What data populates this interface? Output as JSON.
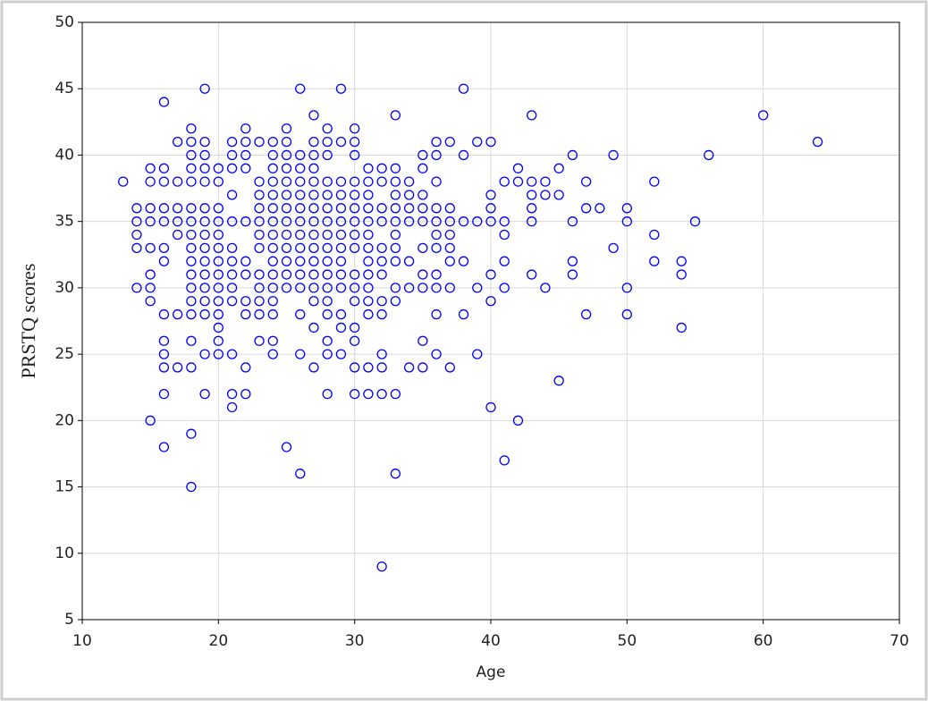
{
  "chart_data": {
    "type": "scatter",
    "xlabel": "Age",
    "ylabel": "PRSTQ  scores",
    "xlim": [
      10,
      70
    ],
    "ylim": [
      5,
      50
    ],
    "xticks": [
      10,
      20,
      30,
      40,
      50,
      60,
      70
    ],
    "yticks": [
      5,
      10,
      15,
      20,
      25,
      30,
      35,
      40,
      45,
      50
    ],
    "grid": true,
    "color": "#0000ff",
    "x": [
      13,
      14,
      14,
      14,
      14,
      14,
      15,
      15,
      15,
      15,
      15,
      15,
      15,
      15,
      15,
      16,
      16,
      16,
      16,
      16,
      16,
      16,
      16,
      16,
      16,
      16,
      16,
      16,
      17,
      17,
      17,
      17,
      17,
      17,
      17,
      18,
      18,
      18,
      18,
      18,
      18,
      18,
      18,
      18,
      18,
      18,
      18,
      18,
      18,
      18,
      18,
      18,
      18,
      19,
      19,
      19,
      19,
      19,
      19,
      19,
      19,
      19,
      19,
      19,
      19,
      19,
      19,
      19,
      19,
      20,
      20,
      20,
      20,
      20,
      20,
      20,
      20,
      20,
      20,
      20,
      20,
      20,
      20,
      21,
      21,
      21,
      21,
      21,
      21,
      21,
      21,
      21,
      21,
      21,
      21,
      21,
      22,
      22,
      22,
      22,
      22,
      22,
      22,
      22,
      22,
      22,
      22,
      23,
      23,
      23,
      23,
      23,
      23,
      23,
      23,
      23,
      23,
      23,
      23,
      24,
      24,
      24,
      24,
      24,
      24,
      24,
      24,
      24,
      24,
      24,
      24,
      24,
      24,
      24,
      24,
      25,
      25,
      25,
      25,
      25,
      25,
      25,
      25,
      25,
      25,
      25,
      25,
      25,
      25,
      26,
      26,
      26,
      26,
      26,
      26,
      26,
      26,
      26,
      26,
      26,
      26,
      26,
      26,
      26,
      27,
      27,
      27,
      27,
      27,
      27,
      27,
      27,
      27,
      27,
      27,
      27,
      27,
      27,
      27,
      27,
      28,
      28,
      28,
      28,
      28,
      28,
      28,
      28,
      28,
      28,
      28,
      28,
      28,
      28,
      28,
      28,
      28,
      29,
      29,
      29,
      29,
      29,
      29,
      29,
      29,
      29,
      29,
      29,
      29,
      29,
      29,
      30,
      30,
      30,
      30,
      30,
      30,
      30,
      30,
      30,
      30,
      30,
      30,
      30,
      30,
      30,
      30,
      31,
      31,
      31,
      31,
      31,
      31,
      31,
      31,
      31,
      31,
      31,
      31,
      31,
      31,
      32,
      32,
      32,
      32,
      32,
      32,
      32,
      32,
      32,
      32,
      32,
      32,
      32,
      33,
      33,
      33,
      33,
      33,
      33,
      33,
      33,
      33,
      33,
      33,
      33,
      33,
      34,
      34,
      34,
      34,
      34,
      34,
      34,
      35,
      35,
      35,
      35,
      35,
      35,
      35,
      35,
      35,
      35,
      36,
      36,
      36,
      36,
      36,
      36,
      36,
      36,
      36,
      36,
      36,
      37,
      37,
      37,
      37,
      37,
      37,
      37,
      37,
      38,
      38,
      38,
      38,
      38,
      39,
      39,
      39,
      39,
      40,
      40,
      40,
      40,
      40,
      40,
      40,
      41,
      41,
      41,
      41,
      41,
      41,
      42,
      42,
      42,
      43,
      43,
      43,
      43,
      43,
      43,
      44,
      44,
      44,
      45,
      45,
      45,
      46,
      46,
      46,
      46,
      47,
      47,
      47,
      48,
      49,
      49,
      50,
      50,
      50,
      50,
      52,
      52,
      52,
      54,
      54,
      54,
      55,
      56,
      60,
      64
    ],
    "values": [
      38,
      36,
      35,
      34,
      33,
      30,
      39,
      38,
      36,
      35,
      33,
      31,
      30,
      29,
      20,
      44,
      39,
      38,
      36,
      35,
      33,
      32,
      28,
      26,
      25,
      24,
      22,
      18,
      41,
      38,
      36,
      35,
      34,
      28,
      24,
      42,
      41,
      40,
      39,
      38,
      36,
      35,
      34,
      33,
      32,
      31,
      30,
      29,
      28,
      26,
      24,
      19,
      15,
      45,
      41,
      40,
      39,
      38,
      36,
      35,
      34,
      33,
      32,
      31,
      30,
      29,
      28,
      25,
      22,
      39,
      38,
      36,
      35,
      34,
      33,
      32,
      31,
      30,
      29,
      28,
      27,
      26,
      25,
      41,
      40,
      39,
      37,
      35,
      33,
      32,
      31,
      30,
      29,
      25,
      22,
      21,
      42,
      41,
      40,
      39,
      35,
      32,
      31,
      29,
      28,
      24,
      22,
      41,
      38,
      37,
      36,
      35,
      34,
      33,
      31,
      30,
      29,
      28,
      26,
      41,
      40,
      39,
      38,
      37,
      36,
      35,
      34,
      33,
      32,
      31,
      30,
      29,
      28,
      26,
      25,
      42,
      41,
      40,
      39,
      38,
      37,
      36,
      35,
      34,
      33,
      32,
      31,
      30,
      18,
      45,
      40,
      39,
      38,
      37,
      36,
      35,
      34,
      33,
      32,
      31,
      30,
      28,
      25,
      16,
      43,
      41,
      40,
      39,
      38,
      37,
      36,
      35,
      34,
      33,
      32,
      31,
      30,
      29,
      27,
      24,
      42,
      41,
      40,
      38,
      37,
      36,
      35,
      34,
      33,
      32,
      31,
      30,
      29,
      28,
      26,
      25,
      22,
      45,
      41,
      38,
      37,
      36,
      35,
      34,
      33,
      32,
      31,
      30,
      28,
      27,
      25,
      42,
      41,
      40,
      38,
      37,
      36,
      35,
      34,
      33,
      31,
      30,
      29,
      27,
      26,
      24,
      22,
      39,
      38,
      37,
      36,
      35,
      34,
      33,
      32,
      31,
      30,
      29,
      28,
      24,
      22,
      39,
      38,
      36,
      35,
      33,
      32,
      31,
      29,
      28,
      25,
      24,
      22,
      9,
      43,
      39,
      38,
      37,
      36,
      35,
      34,
      33,
      32,
      30,
      29,
      22,
      16,
      38,
      37,
      36,
      35,
      32,
      30,
      24,
      40,
      39,
      37,
      36,
      35,
      33,
      31,
      30,
      26,
      24,
      41,
      40,
      38,
      36,
      35,
      34,
      33,
      31,
      30,
      28,
      25,
      41,
      36,
      35,
      34,
      33,
      32,
      30,
      24,
      45,
      40,
      35,
      32,
      28,
      41,
      35,
      30,
      25,
      41,
      37,
      36,
      35,
      31,
      29,
      21,
      38,
      35,
      34,
      32,
      30,
      17,
      39,
      38,
      20,
      43,
      38,
      37,
      36,
      35,
      31,
      38,
      37,
      30,
      39,
      37,
      23,
      40,
      35,
      32,
      31,
      38,
      36,
      28,
      36,
      40,
      33,
      36,
      35,
      30,
      28,
      38,
      34,
      32,
      32,
      31,
      27,
      35,
      40,
      43,
      41
    ]
  }
}
